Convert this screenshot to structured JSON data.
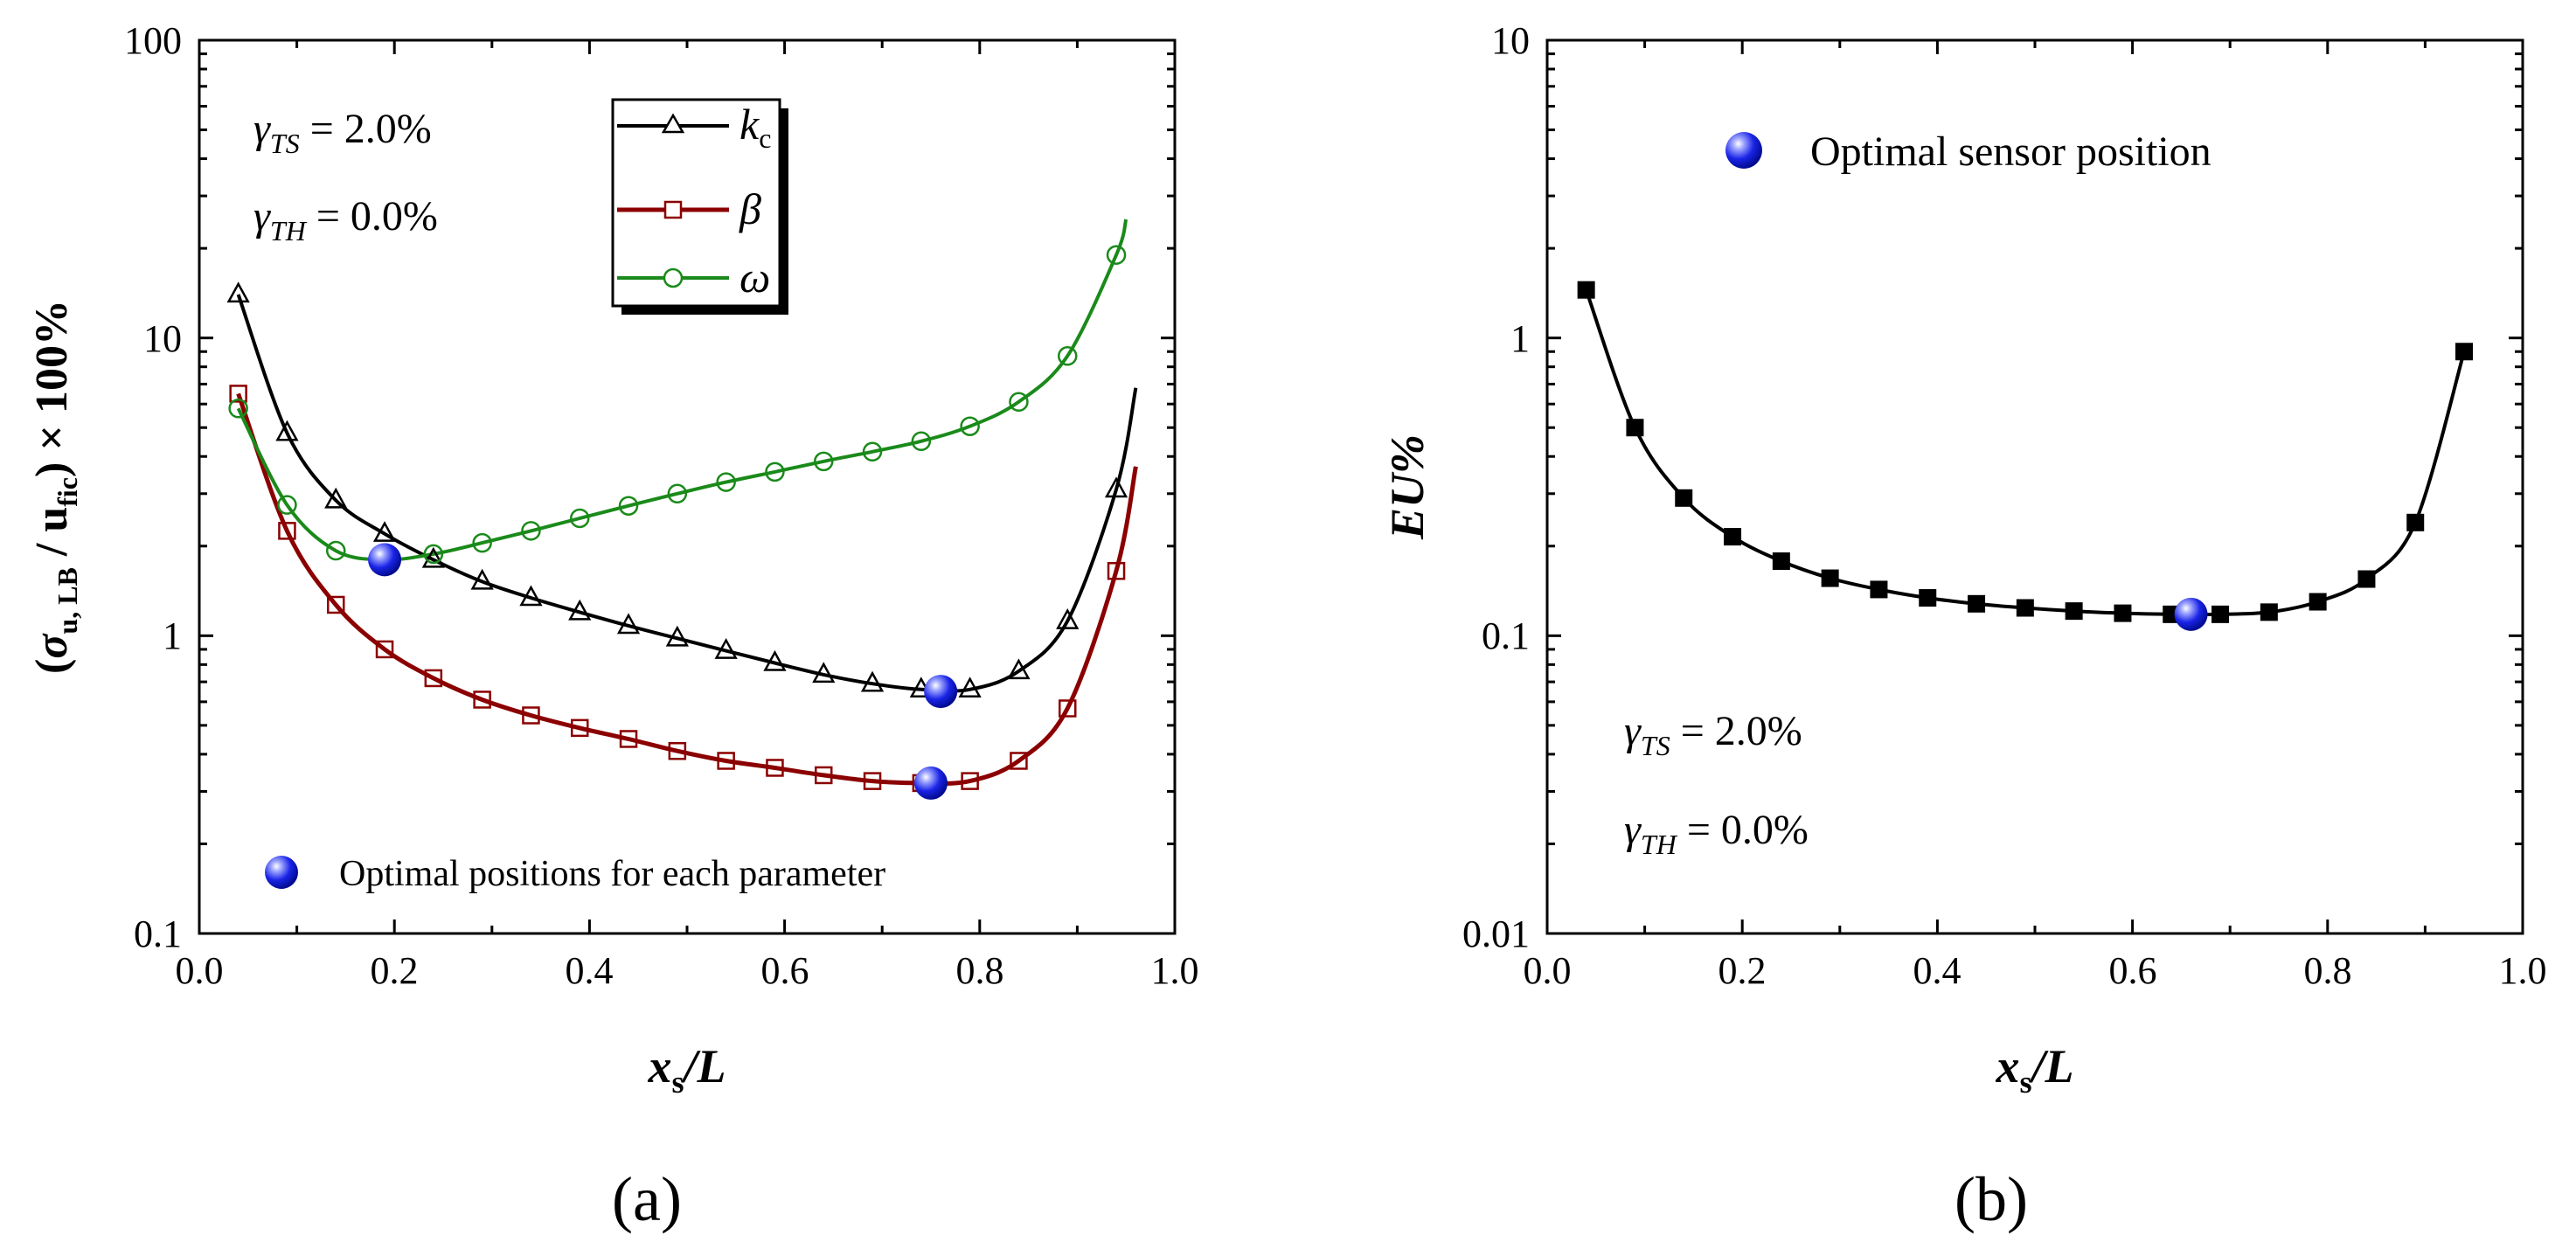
{
  "chart_data": [
    {
      "id": "a",
      "type": "line",
      "panel_label": "(a)",
      "xscale": "linear",
      "yscale": "log",
      "xlim": [
        0.0,
        1.0
      ],
      "ylim": [
        0.1,
        100
      ],
      "xticks": [
        "0.0",
        "0.2",
        "0.4",
        "0.6",
        "0.8",
        "1.0"
      ],
      "yticks": [
        "0.1",
        "1",
        "10",
        "100"
      ],
      "xlabel": {
        "main": "x",
        "sub": "s",
        "tail": "/L"
      },
      "ylabel": {
        "open": "(",
        "sigma": "σ",
        "sub1": "u, LB",
        "slash": " / u",
        "sub2": "fic",
        "close": ") × 100%"
      },
      "annotations": {
        "line1": {
          "symbol": "γ",
          "sub": "TS",
          "text": " = 2.0%"
        },
        "line2": {
          "symbol": "γ",
          "sub": "TH",
          "text": " = 0.0%"
        }
      },
      "legend": {
        "position": "top-center",
        "entries": [
          {
            "label": "k",
            "sub": "c",
            "color": "#000000",
            "marker": "open-triangle"
          },
          {
            "label": "β",
            "sub": "",
            "color": "#8b0000",
            "marker": "open-square"
          },
          {
            "label": "ω",
            "sub": "",
            "color": "#1a8a1a",
            "marker": "open-circle"
          }
        ]
      },
      "optimal_legend": "Optimal positions for each parameter",
      "series": [
        {
          "name": "kc",
          "color": "#000000",
          "marker": "open-triangle",
          "curve_x": [
            0.04,
            0.09,
            0.14,
            0.19,
            0.24,
            0.29,
            0.34,
            0.39,
            0.44,
            0.49,
            0.54,
            0.59,
            0.64,
            0.69,
            0.74,
            0.79,
            0.84,
            0.89,
            0.94,
            0.96
          ],
          "curve_y": [
            14,
            4.8,
            2.85,
            2.2,
            1.8,
            1.52,
            1.34,
            1.2,
            1.08,
            0.98,
            0.89,
            0.81,
            0.74,
            0.69,
            0.66,
            0.66,
            0.76,
            1.12,
            3.1,
            6.8
          ],
          "marker_x": [
            0.04,
            0.09,
            0.14,
            0.19,
            0.24,
            0.29,
            0.34,
            0.39,
            0.44,
            0.49,
            0.54,
            0.59,
            0.64,
            0.69,
            0.74,
            0.79,
            0.84,
            0.89,
            0.94
          ],
          "marker_y": [
            14,
            4.8,
            2.85,
            2.2,
            1.8,
            1.52,
            1.34,
            1.2,
            1.08,
            0.98,
            0.89,
            0.81,
            0.74,
            0.69,
            0.66,
            0.66,
            0.76,
            1.12,
            3.1
          ]
        },
        {
          "name": "beta",
          "color": "#8b0000",
          "marker": "open-square",
          "curve_x": [
            0.04,
            0.09,
            0.14,
            0.19,
            0.24,
            0.29,
            0.34,
            0.39,
            0.44,
            0.49,
            0.54,
            0.59,
            0.64,
            0.69,
            0.74,
            0.79,
            0.84,
            0.89,
            0.94,
            0.96
          ],
          "curve_y": [
            6.5,
            2.25,
            1.27,
            0.9,
            0.72,
            0.61,
            0.54,
            0.49,
            0.45,
            0.41,
            0.38,
            0.36,
            0.34,
            0.325,
            0.32,
            0.325,
            0.38,
            0.57,
            1.65,
            3.7
          ],
          "marker_x": [
            0.04,
            0.09,
            0.14,
            0.19,
            0.24,
            0.29,
            0.34,
            0.39,
            0.44,
            0.49,
            0.54,
            0.59,
            0.64,
            0.69,
            0.74,
            0.79,
            0.84,
            0.89,
            0.94
          ],
          "marker_y": [
            6.5,
            2.25,
            1.27,
            0.9,
            0.72,
            0.61,
            0.54,
            0.49,
            0.45,
            0.41,
            0.38,
            0.36,
            0.34,
            0.325,
            0.32,
            0.325,
            0.38,
            0.57,
            1.65
          ]
        },
        {
          "name": "omega",
          "color": "#1a8a1a",
          "marker": "open-circle",
          "curve_x": [
            0.04,
            0.09,
            0.14,
            0.19,
            0.24,
            0.29,
            0.34,
            0.39,
            0.44,
            0.49,
            0.54,
            0.59,
            0.64,
            0.69,
            0.74,
            0.79,
            0.84,
            0.89,
            0.94,
            0.95
          ],
          "curve_y": [
            5.8,
            2.75,
            1.93,
            1.8,
            1.88,
            2.05,
            2.25,
            2.48,
            2.73,
            3.0,
            3.28,
            3.55,
            3.85,
            4.15,
            4.5,
            5.05,
            6.1,
            8.7,
            19,
            25
          ],
          "marker_x": [
            0.04,
            0.09,
            0.14,
            0.19,
            0.24,
            0.29,
            0.34,
            0.39,
            0.44,
            0.49,
            0.54,
            0.59,
            0.64,
            0.69,
            0.74,
            0.79,
            0.84,
            0.89,
            0.94
          ],
          "marker_y": [
            5.8,
            2.75,
            1.93,
            1.8,
            1.88,
            2.05,
            2.25,
            2.48,
            2.73,
            3.0,
            3.28,
            3.55,
            3.85,
            4.15,
            4.5,
            5.05,
            6.1,
            8.7,
            19
          ]
        }
      ],
      "optimal_points": [
        {
          "series": "omega",
          "x": 0.19,
          "y": 1.8
        },
        {
          "series": "kc",
          "x": 0.76,
          "y": 0.65
        },
        {
          "series": "beta",
          "x": 0.75,
          "y": 0.32
        }
      ]
    },
    {
      "id": "b",
      "type": "line",
      "panel_label": "(b)",
      "xscale": "linear",
      "yscale": "log",
      "xlim": [
        0.0,
        1.0
      ],
      "ylim": [
        0.01,
        10
      ],
      "xticks": [
        "0.0",
        "0.2",
        "0.4",
        "0.6",
        "0.8",
        "1.0"
      ],
      "yticks": [
        "0.01",
        "0.1",
        "1",
        "10"
      ],
      "xlabel": {
        "main": "x",
        "sub": "s",
        "tail": "/L"
      },
      "ylabel": {
        "text": "EU%"
      },
      "annotations": {
        "line1": {
          "symbol": "γ",
          "sub": "TS",
          "text": " = 2.0%"
        },
        "line2": {
          "symbol": "γ",
          "sub": "TH",
          "text": " = 0.0%"
        }
      },
      "optimal_legend": "Optimal sensor position",
      "series": [
        {
          "name": "EU",
          "color": "#000000",
          "marker": "filled-square",
          "curve_x": [
            0.04,
            0.09,
            0.14,
            0.19,
            0.24,
            0.29,
            0.34,
            0.39,
            0.44,
            0.49,
            0.54,
            0.59,
            0.64,
            0.69,
            0.74,
            0.79,
            0.84,
            0.89,
            0.94
          ],
          "curve_y": [
            1.45,
            0.5,
            0.29,
            0.215,
            0.178,
            0.156,
            0.143,
            0.134,
            0.128,
            0.124,
            0.121,
            0.119,
            0.118,
            0.118,
            0.12,
            0.13,
            0.155,
            0.24,
            0.9
          ],
          "marker_x": [
            0.04,
            0.09,
            0.14,
            0.19,
            0.24,
            0.29,
            0.34,
            0.39,
            0.44,
            0.49,
            0.54,
            0.59,
            0.64,
            0.69,
            0.74,
            0.79,
            0.84,
            0.89,
            0.94
          ],
          "marker_y": [
            1.45,
            0.5,
            0.29,
            0.215,
            0.178,
            0.156,
            0.143,
            0.134,
            0.128,
            0.124,
            0.121,
            0.119,
            0.118,
            0.118,
            0.12,
            0.13,
            0.155,
            0.24,
            0.9
          ]
        }
      ],
      "optimal_points": [
        {
          "series": "EU",
          "x": 0.66,
          "y": 0.118
        }
      ]
    }
  ]
}
